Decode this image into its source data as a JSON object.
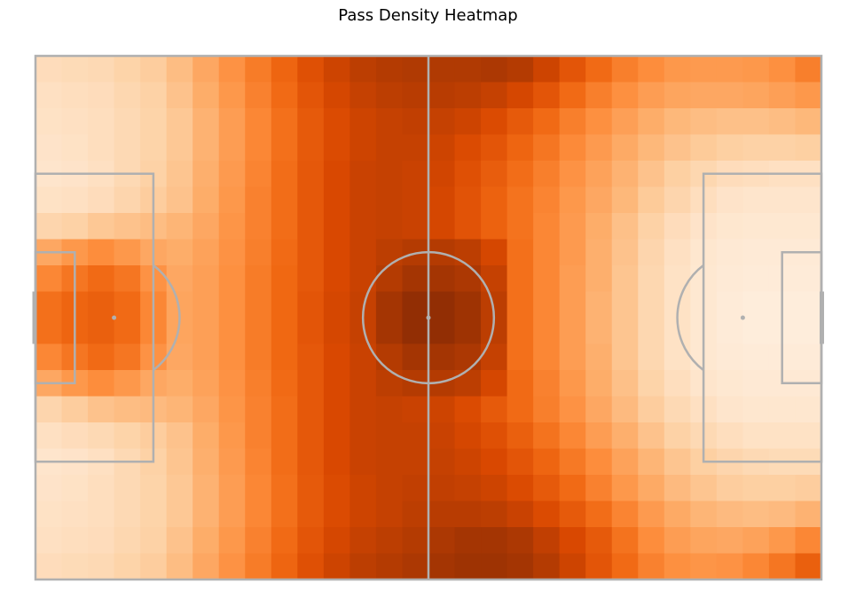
{
  "chart_data": {
    "type": "heatmap",
    "title": "Pass Density Heatmap",
    "xlabel": "",
    "ylabel": "",
    "colormap": "Oranges",
    "grid": false,
    "pitch_line_color": "#b0b0b0",
    "x_range": [
      0,
      120
    ],
    "y_range": [
      0,
      80
    ],
    "bins": [
      30,
      20
    ],
    "description_scale": [
      0,
      1
    ],
    "values": [
      [
        0.18,
        0.19,
        0.2,
        0.23,
        0.26,
        0.32,
        0.4,
        0.48,
        0.56,
        0.64,
        0.72,
        0.78,
        0.82,
        0.84,
        0.85,
        0.85,
        0.85,
        0.86,
        0.84,
        0.78,
        0.7,
        0.62,
        0.55,
        0.5,
        0.46,
        0.45,
        0.45,
        0.46,
        0.49,
        0.55
      ],
      [
        0.16,
        0.17,
        0.18,
        0.21,
        0.24,
        0.3,
        0.38,
        0.46,
        0.54,
        0.62,
        0.7,
        0.76,
        0.8,
        0.82,
        0.83,
        0.83,
        0.82,
        0.8,
        0.76,
        0.7,
        0.62,
        0.55,
        0.49,
        0.44,
        0.41,
        0.4,
        0.4,
        0.41,
        0.43,
        0.46
      ],
      [
        0.15,
        0.16,
        0.17,
        0.2,
        0.23,
        0.28,
        0.36,
        0.44,
        0.52,
        0.6,
        0.68,
        0.74,
        0.78,
        0.8,
        0.81,
        0.8,
        0.78,
        0.74,
        0.68,
        0.62,
        0.55,
        0.49,
        0.43,
        0.38,
        0.34,
        0.32,
        0.31,
        0.31,
        0.32,
        0.34
      ],
      [
        0.14,
        0.15,
        0.17,
        0.2,
        0.23,
        0.28,
        0.36,
        0.44,
        0.52,
        0.6,
        0.68,
        0.74,
        0.78,
        0.8,
        0.8,
        0.78,
        0.74,
        0.7,
        0.64,
        0.58,
        0.51,
        0.45,
        0.39,
        0.34,
        0.3,
        0.27,
        0.25,
        0.24,
        0.24,
        0.25
      ],
      [
        0.13,
        0.14,
        0.16,
        0.2,
        0.24,
        0.29,
        0.37,
        0.45,
        0.53,
        0.61,
        0.69,
        0.75,
        0.79,
        0.8,
        0.79,
        0.77,
        0.72,
        0.67,
        0.61,
        0.55,
        0.48,
        0.42,
        0.36,
        0.3,
        0.25,
        0.21,
        0.18,
        0.17,
        0.16,
        0.16
      ],
      [
        0.15,
        0.16,
        0.18,
        0.22,
        0.26,
        0.3,
        0.38,
        0.46,
        0.54,
        0.61,
        0.69,
        0.75,
        0.79,
        0.8,
        0.79,
        0.76,
        0.71,
        0.65,
        0.59,
        0.53,
        0.46,
        0.4,
        0.34,
        0.27,
        0.22,
        0.17,
        0.14,
        0.13,
        0.13,
        0.13
      ],
      [
        0.22,
        0.24,
        0.28,
        0.3,
        0.32,
        0.35,
        0.4,
        0.47,
        0.54,
        0.61,
        0.69,
        0.75,
        0.79,
        0.8,
        0.79,
        0.76,
        0.71,
        0.65,
        0.59,
        0.52,
        0.45,
        0.38,
        0.31,
        0.24,
        0.18,
        0.14,
        0.12,
        0.11,
        0.11,
        0.11
      ],
      [
        0.4,
        0.46,
        0.5,
        0.46,
        0.4,
        0.38,
        0.42,
        0.48,
        0.55,
        0.62,
        0.69,
        0.75,
        0.79,
        0.82,
        0.84,
        0.84,
        0.82,
        0.76,
        0.6,
        0.52,
        0.45,
        0.37,
        0.3,
        0.22,
        0.16,
        0.12,
        0.1,
        0.09,
        0.09,
        0.09
      ],
      [
        0.52,
        0.58,
        0.62,
        0.58,
        0.48,
        0.4,
        0.43,
        0.49,
        0.56,
        0.63,
        0.69,
        0.75,
        0.79,
        0.84,
        0.88,
        0.88,
        0.86,
        0.8,
        0.6,
        0.52,
        0.44,
        0.37,
        0.29,
        0.21,
        0.15,
        0.11,
        0.09,
        0.08,
        0.08,
        0.08
      ],
      [
        0.6,
        0.64,
        0.66,
        0.62,
        0.52,
        0.41,
        0.43,
        0.49,
        0.56,
        0.63,
        0.7,
        0.76,
        0.8,
        0.88,
        0.94,
        0.94,
        0.9,
        0.82,
        0.6,
        0.52,
        0.44,
        0.36,
        0.29,
        0.21,
        0.15,
        0.11,
        0.08,
        0.07,
        0.07,
        0.07
      ],
      [
        0.6,
        0.64,
        0.66,
        0.62,
        0.52,
        0.41,
        0.43,
        0.49,
        0.56,
        0.63,
        0.7,
        0.76,
        0.8,
        0.88,
        0.94,
        0.94,
        0.9,
        0.82,
        0.6,
        0.52,
        0.44,
        0.36,
        0.29,
        0.21,
        0.15,
        0.11,
        0.08,
        0.07,
        0.07,
        0.07
      ],
      [
        0.52,
        0.58,
        0.62,
        0.58,
        0.48,
        0.4,
        0.43,
        0.49,
        0.56,
        0.63,
        0.69,
        0.75,
        0.79,
        0.84,
        0.88,
        0.88,
        0.86,
        0.8,
        0.6,
        0.52,
        0.44,
        0.37,
        0.29,
        0.21,
        0.15,
        0.11,
        0.09,
        0.08,
        0.08,
        0.08
      ],
      [
        0.4,
        0.46,
        0.5,
        0.46,
        0.4,
        0.38,
        0.42,
        0.48,
        0.55,
        0.62,
        0.69,
        0.75,
        0.79,
        0.82,
        0.84,
        0.84,
        0.82,
        0.76,
        0.62,
        0.54,
        0.46,
        0.38,
        0.31,
        0.23,
        0.17,
        0.13,
        0.11,
        0.1,
        0.1,
        0.1
      ],
      [
        0.22,
        0.26,
        0.3,
        0.32,
        0.33,
        0.35,
        0.4,
        0.47,
        0.54,
        0.61,
        0.69,
        0.75,
        0.79,
        0.8,
        0.79,
        0.78,
        0.74,
        0.68,
        0.62,
        0.55,
        0.48,
        0.4,
        0.33,
        0.26,
        0.2,
        0.16,
        0.13,
        0.12,
        0.12,
        0.12
      ],
      [
        0.16,
        0.18,
        0.2,
        0.23,
        0.26,
        0.3,
        0.38,
        0.46,
        0.54,
        0.61,
        0.69,
        0.75,
        0.79,
        0.8,
        0.8,
        0.79,
        0.76,
        0.72,
        0.66,
        0.59,
        0.52,
        0.44,
        0.37,
        0.3,
        0.24,
        0.2,
        0.17,
        0.15,
        0.15,
        0.15
      ],
      [
        0.13,
        0.14,
        0.16,
        0.2,
        0.24,
        0.29,
        0.37,
        0.45,
        0.53,
        0.61,
        0.69,
        0.75,
        0.79,
        0.8,
        0.8,
        0.8,
        0.78,
        0.75,
        0.7,
        0.64,
        0.57,
        0.5,
        0.42,
        0.35,
        0.29,
        0.25,
        0.22,
        0.2,
        0.19,
        0.19
      ],
      [
        0.14,
        0.15,
        0.17,
        0.2,
        0.23,
        0.28,
        0.36,
        0.44,
        0.52,
        0.6,
        0.68,
        0.74,
        0.78,
        0.8,
        0.81,
        0.81,
        0.8,
        0.78,
        0.74,
        0.68,
        0.62,
        0.54,
        0.46,
        0.39,
        0.33,
        0.29,
        0.26,
        0.25,
        0.25,
        0.26
      ],
      [
        0.15,
        0.16,
        0.17,
        0.2,
        0.23,
        0.28,
        0.36,
        0.44,
        0.52,
        0.6,
        0.68,
        0.74,
        0.78,
        0.8,
        0.82,
        0.83,
        0.83,
        0.82,
        0.79,
        0.74,
        0.68,
        0.61,
        0.53,
        0.45,
        0.39,
        0.35,
        0.33,
        0.32,
        0.33,
        0.36
      ],
      [
        0.16,
        0.17,
        0.18,
        0.21,
        0.24,
        0.3,
        0.38,
        0.46,
        0.54,
        0.62,
        0.7,
        0.76,
        0.8,
        0.82,
        0.84,
        0.86,
        0.88,
        0.88,
        0.86,
        0.81,
        0.75,
        0.68,
        0.59,
        0.5,
        0.44,
        0.41,
        0.4,
        0.42,
        0.46,
        0.52
      ],
      [
        0.18,
        0.19,
        0.2,
        0.23,
        0.26,
        0.32,
        0.4,
        0.48,
        0.56,
        0.64,
        0.72,
        0.78,
        0.82,
        0.84,
        0.86,
        0.88,
        0.9,
        0.9,
        0.88,
        0.84,
        0.78,
        0.7,
        0.62,
        0.54,
        0.49,
        0.47,
        0.48,
        0.52,
        0.58,
        0.66
      ]
    ]
  }
}
